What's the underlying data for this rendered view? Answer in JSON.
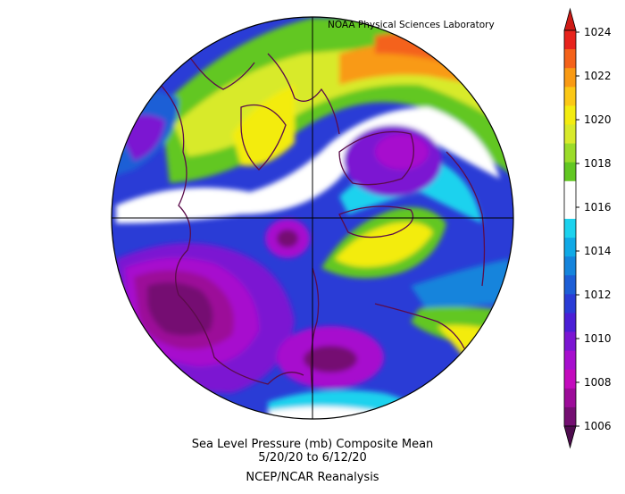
{
  "credit": "NOAA Physical Sciences Laboratory",
  "caption": {
    "line1": "Sea Level Pressure (mb) Composite Mean",
    "line2": "5/20/20  to 6/12/20",
    "line3": "NCEP/NCAR Reanalysis"
  },
  "colorbar": {
    "tick_labels": [
      "1024",
      "1022",
      "1020",
      "1018",
      "1016",
      "1014",
      "1012",
      "1010",
      "1008",
      "1006"
    ],
    "bins": [
      {
        "color": "#e7231c"
      },
      {
        "color": "#f4621a"
      },
      {
        "color": "#f99a14"
      },
      {
        "color": "#fbc816"
      },
      {
        "color": "#f3ec10"
      },
      {
        "color": "#d8ea2c"
      },
      {
        "color": "#9bdc2a"
      },
      {
        "color": "#62c722"
      },
      {
        "color": "#ffffff"
      },
      {
        "color": "#ffffff"
      },
      {
        "color": "#1cd2ee"
      },
      {
        "color": "#10a9e6"
      },
      {
        "color": "#1584dc"
      },
      {
        "color": "#1d5ed6"
      },
      {
        "color": "#2a3cd6"
      },
      {
        "color": "#4b1fd6"
      },
      {
        "color": "#7b16d2"
      },
      {
        "color": "#a70fce"
      },
      {
        "color": "#c30bbd"
      },
      {
        "color": "#9c0c99"
      },
      {
        "color": "#740f72"
      }
    ],
    "top_arrow_color": "#ce1b16",
    "bottom_arrow_color": "#4e0c4e"
  },
  "map": {
    "projection": "north-polar-stereographic",
    "field": "sea-level-pressure",
    "units": "mb"
  }
}
